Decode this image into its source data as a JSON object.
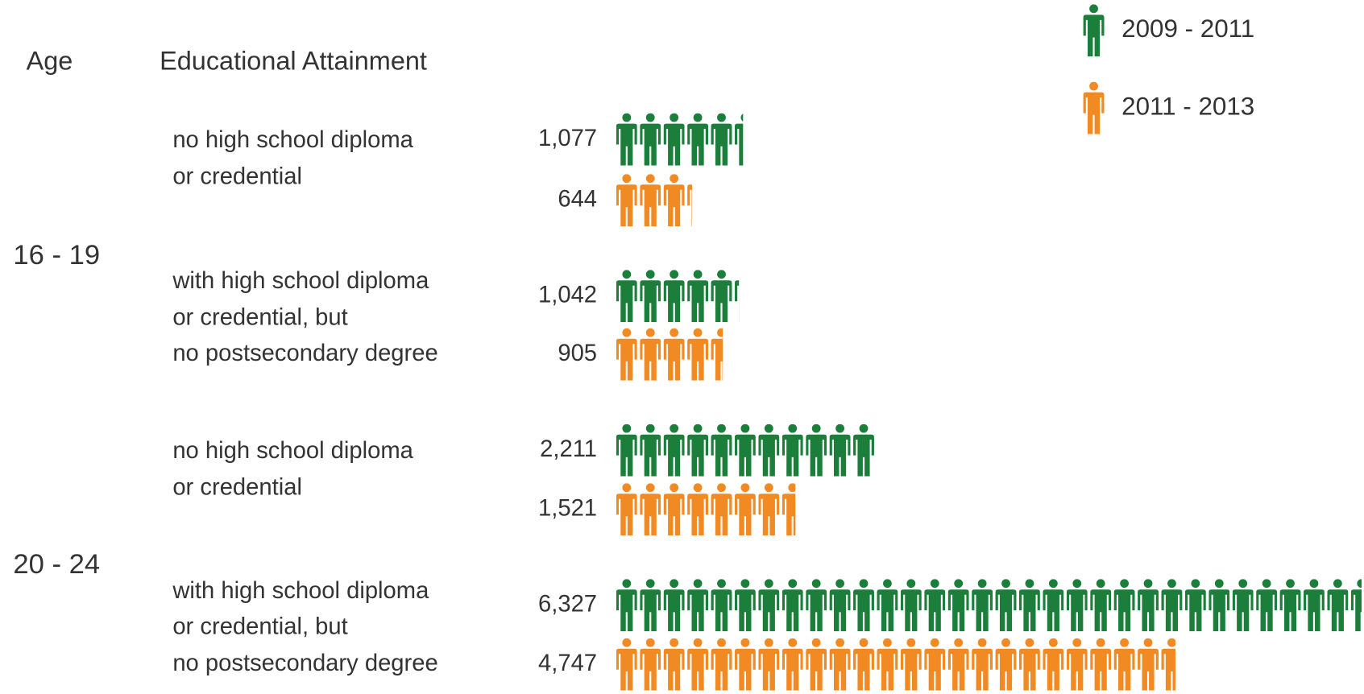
{
  "chart_data": {
    "type": "pictogram",
    "age_header": "Age",
    "attainment_header": "Educational Attainment",
    "age_groups": [
      {
        "label": "16 - 19",
        "categories": [
          [
            "no high school diploma",
            "or credential"
          ],
          [
            "with high school diploma",
            "or credential, but",
            "no postsecondary degree"
          ]
        ]
      },
      {
        "label": "20 - 24",
        "categories": [
          [
            "no high school diploma",
            "or credential"
          ],
          [
            "with high school diploma",
            "or credential, but",
            "no postsecondary degree"
          ]
        ]
      }
    ],
    "series": [
      {
        "name": "2009 - 2011",
        "color": "#1b7f3b",
        "values": [
          1077,
          1042,
          2211,
          6327
        ],
        "value_labels": [
          "1,077",
          "1,042",
          "2,211",
          "6,327"
        ]
      },
      {
        "name": "2011 - 2013",
        "color": "#f28a24",
        "values": [
          644,
          905,
          1521,
          4747
        ],
        "value_labels": [
          "644",
          "905",
          "1,521",
          "4,747"
        ]
      }
    ]
  }
}
